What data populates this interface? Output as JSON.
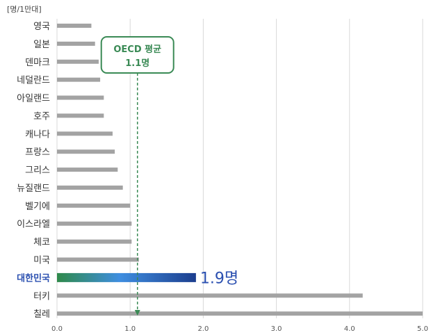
{
  "chart_data": {
    "type": "bar",
    "orientation": "horizontal",
    "unit_label": "[명/1만대]",
    "categories": [
      "영국",
      "일본",
      "덴마크",
      "네덜란드",
      "아일랜드",
      "호주",
      "캐나다",
      "프랑스",
      "그리스",
      "뉴질랜드",
      "벨기에",
      "이스라엘",
      "체코",
      "미국",
      "대한민국",
      "터키",
      "칠레"
    ],
    "values": [
      0.47,
      0.52,
      0.57,
      0.59,
      0.64,
      0.64,
      0.76,
      0.79,
      0.83,
      0.9,
      1.0,
      1.02,
      1.02,
      1.12,
      1.9,
      4.18,
      5.0
    ],
    "highlight": {
      "category": "대한민국",
      "label": "1.9명",
      "gradient": [
        "#2f8a4a",
        "#3f8ee0",
        "#1c3e8e"
      ]
    },
    "annotation": {
      "line1": "OECD 평균",
      "line2": "1.1명",
      "value": 1.1,
      "color": "#3a8a55"
    },
    "xlim": [
      0,
      5
    ],
    "xticks": [
      "0.0",
      "1.0",
      "2.0",
      "3.0",
      "4.0",
      "5.0"
    ],
    "grid": true
  }
}
